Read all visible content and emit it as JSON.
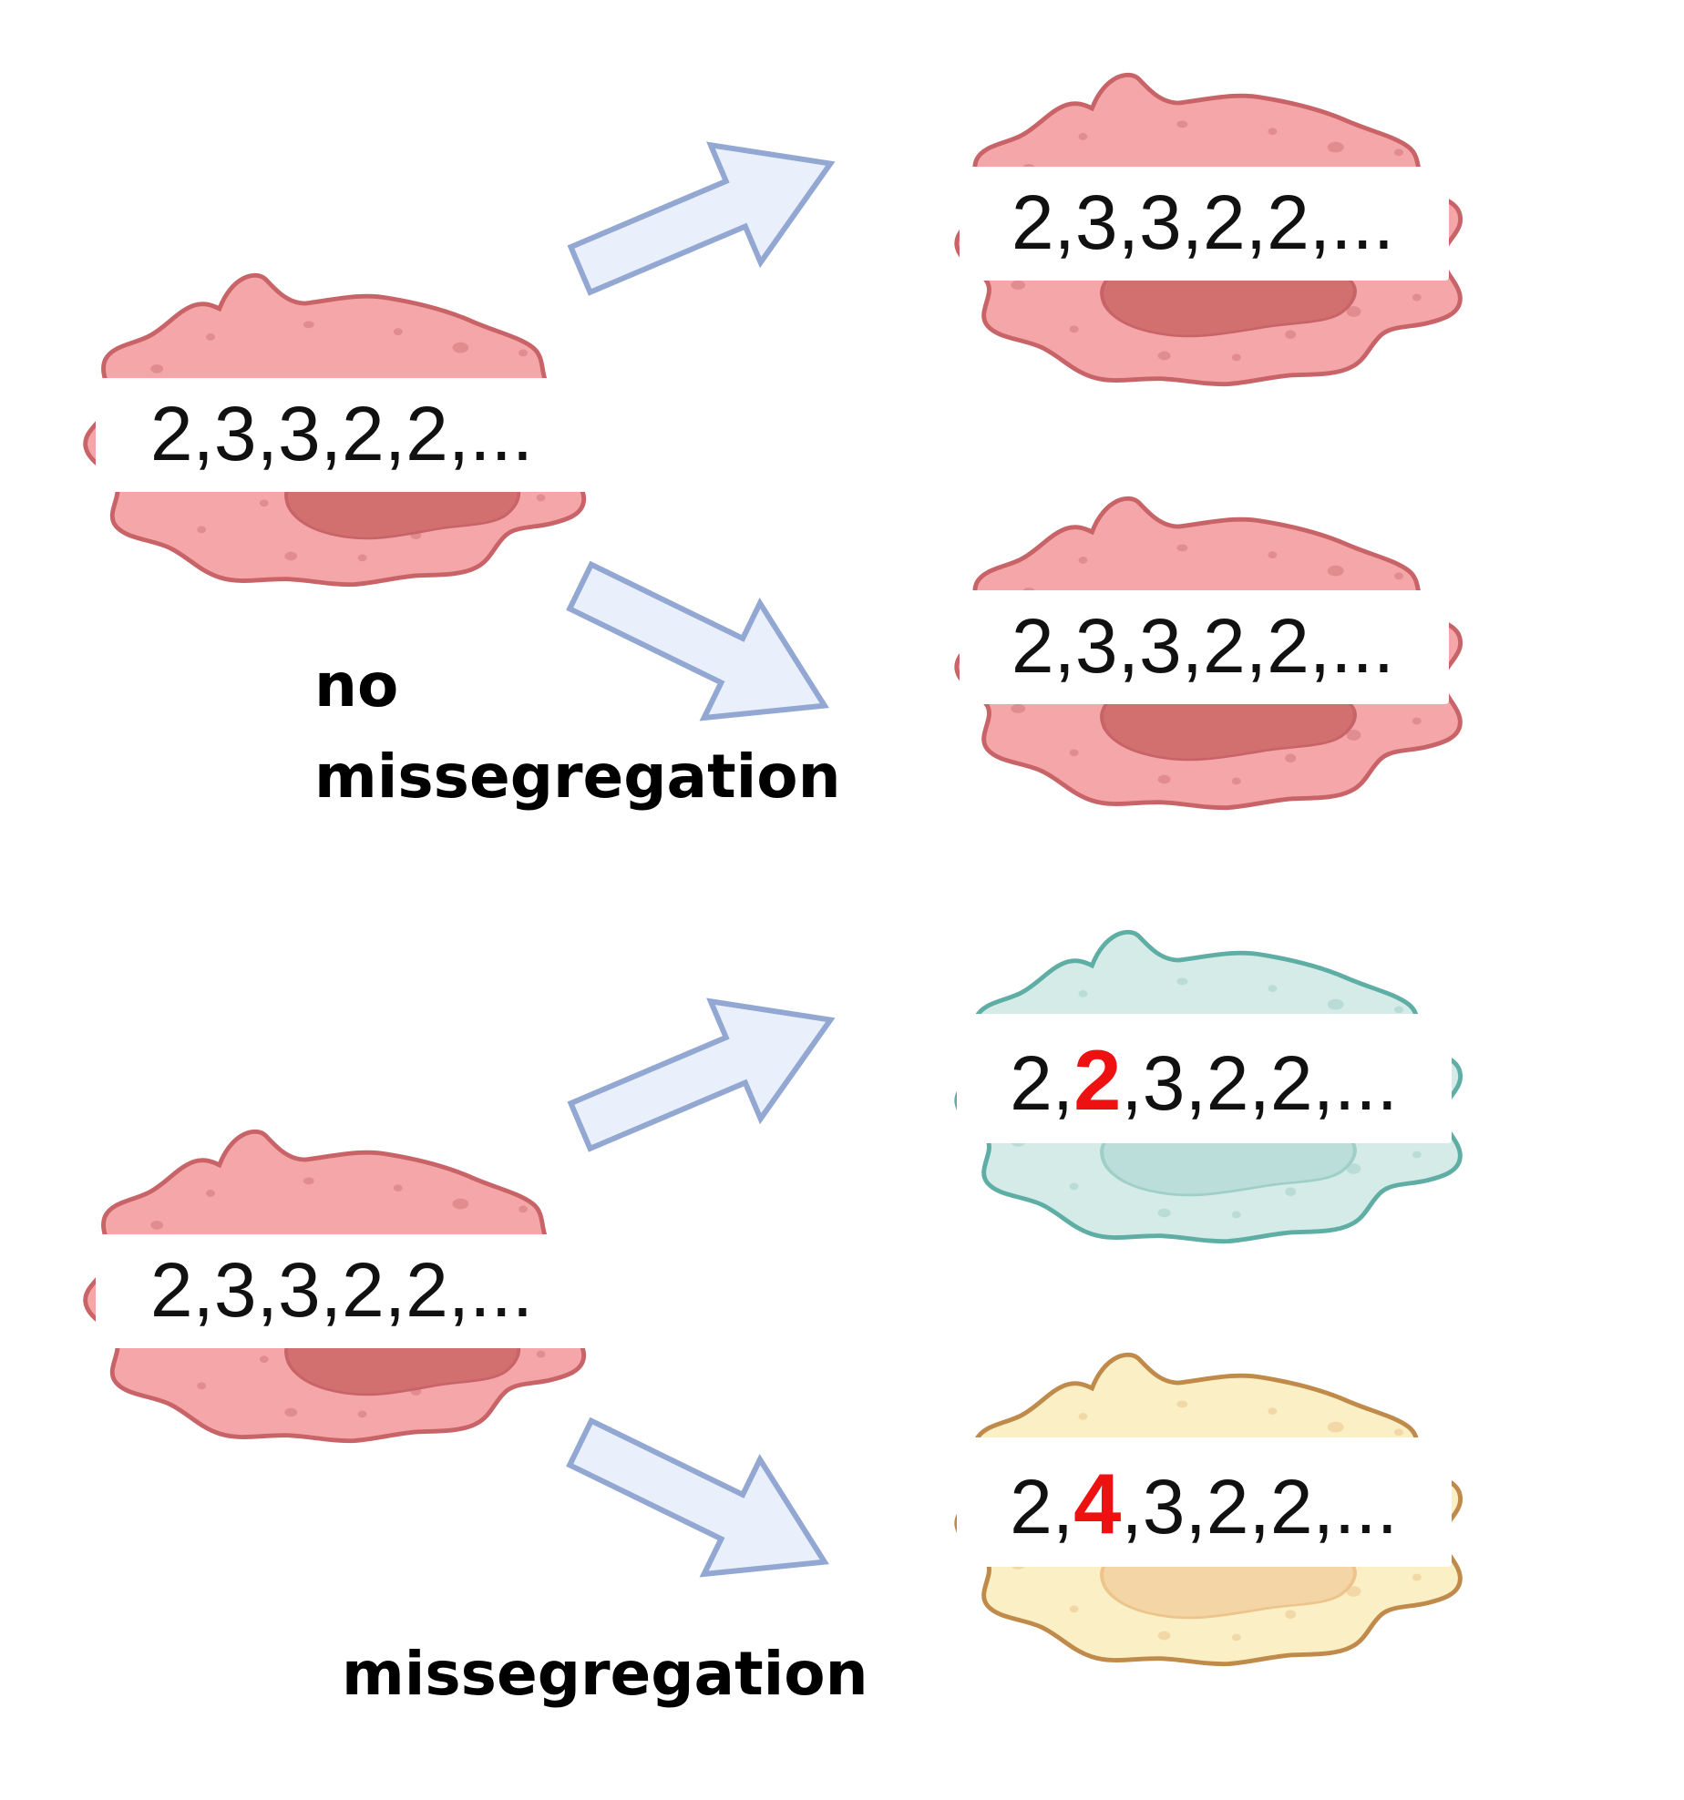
{
  "colors": {
    "pink_fill": "#f5a6a8",
    "pink_stroke": "#c86468",
    "pink_nucleus": "#d27070",
    "pink_dot": "#e18c8e",
    "teal_fill": "#d5ebe8",
    "teal_stroke": "#5faea5",
    "teal_nucleus": "#bcdeda",
    "teal_dot": "#b9dcd6",
    "yellow_fill": "#fbefc5",
    "yellow_stroke": "#bf8a4a",
    "yellow_nucleus": "#f4d6a6",
    "yellow_dot": "#f2d8a6",
    "arrow_fill": "#e9f0fb",
    "arrow_stroke": "#92a7d1",
    "highlight": "#ee1111"
  },
  "top_group": {
    "parent": {
      "karyotype": "2,3,3,2,2,..."
    },
    "child_upper": {
      "karyotype": "2,3,3,2,2,..."
    },
    "child_lower": {
      "karyotype": "2,3,3,2,2,..."
    },
    "label_line1": "no",
    "label_line2": "missegregation"
  },
  "bottom_group": {
    "parent": {
      "karyotype": "2,3,3,2,2,..."
    },
    "child_upper": {
      "prefix": "2,",
      "changed": "2",
      "suffix": ",3,2,2,..."
    },
    "child_lower": {
      "prefix": "2,",
      "changed": "4",
      "suffix": ",3,2,2,..."
    },
    "label": "missegregation"
  }
}
